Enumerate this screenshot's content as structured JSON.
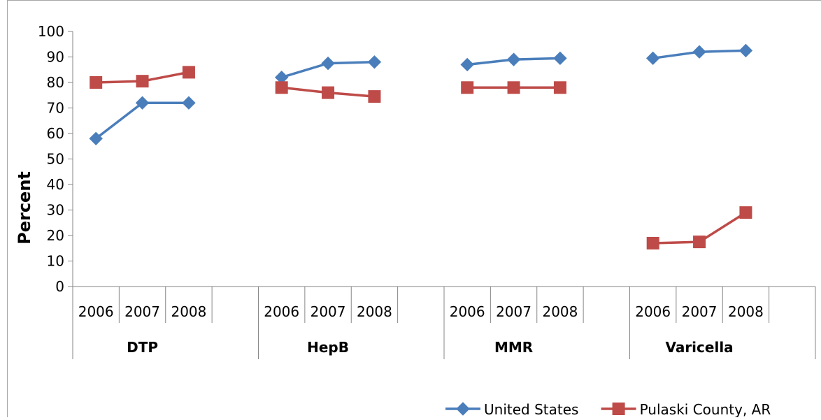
{
  "chart_data": {
    "type": "line",
    "title": "",
    "xlabel": "",
    "ylabel": "Percent",
    "ylim": [
      0,
      100
    ],
    "yticks": [
      0,
      10,
      20,
      30,
      40,
      50,
      60,
      70,
      80,
      90,
      100
    ],
    "grid": false,
    "legend_position": "bottom-right",
    "groups": [
      {
        "name": "DTP",
        "categories": [
          "2006",
          "2007",
          "2008"
        ]
      },
      {
        "name": "HepB",
        "categories": [
          "2006",
          "2007",
          "2008"
        ]
      },
      {
        "name": "MMR",
        "categories": [
          "2006",
          "2007",
          "2008"
        ]
      },
      {
        "name": "Varicella",
        "categories": [
          "2006",
          "2007",
          "2008"
        ]
      }
    ],
    "series": [
      {
        "name": "United States",
        "color": "#4a7ebb",
        "marker": "diamond",
        "values": [
          [
            58,
            72,
            72
          ],
          [
            82,
            87.5,
            88
          ],
          [
            87,
            89,
            89.5
          ],
          [
            89.5,
            92,
            92.5
          ]
        ]
      },
      {
        "name": "Pulaski County, AR",
        "color": "#be4b48",
        "marker": "square",
        "values": [
          [
            80,
            80.5,
            84
          ],
          [
            78,
            76,
            74.5
          ],
          [
            78,
            78,
            78
          ],
          [
            17,
            17.5,
            29
          ]
        ]
      }
    ]
  }
}
